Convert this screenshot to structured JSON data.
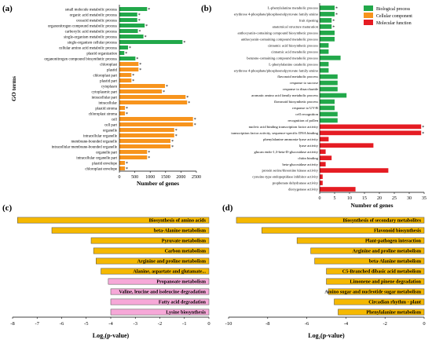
{
  "panels": {
    "a": "(a)",
    "b": "(b)",
    "c": "(c)",
    "d": "(d)"
  },
  "colors": {
    "biological": "#22a84a",
    "cellular": "#f7941d",
    "molecular": "#e51c23",
    "pathway_yellow": "#f5b800",
    "pathway_pink": "#f6a8d8"
  },
  "chart_data": [
    {
      "panel": "a",
      "type": "bar",
      "orientation": "horizontal",
      "xlabel": "Number of genes",
      "ylabel": "GO terms",
      "xlim": [
        0,
        2500
      ],
      "xticks": [
        0,
        500,
        1000,
        1500,
        2000,
        2500
      ],
      "categories": [
        "small molecule metabolic process",
        "organic acid metabolic process",
        "oxoacid metabolic process",
        "organonitrogen compound metabolic process",
        "carboxylic acid metabolic process",
        "single-organism metabolic process",
        "single-organism cellular process",
        "cellular amino acid metabolic process",
        "plastid organization",
        "organonitrogen compound biosynthetic process",
        "chloroplast",
        "plastid",
        "chloroplast part",
        "plastid part",
        "cytoplasm",
        "cytoplasmic part",
        "intracellular part",
        "intracellular",
        "plastid stroma",
        "chloroplast stroma",
        "cell",
        "cell part",
        "organelle",
        "intracellular organelle",
        "membrane-bounded organelle",
        "intracellular membrane-bounded organelle",
        "organelle part",
        "intracellular organelle part",
        "plastid envelope",
        "chloroplast envelope"
      ],
      "groups": [
        "biological",
        "biological",
        "biological",
        "biological",
        "biological",
        "biological",
        "biological",
        "biological",
        "biological",
        "biological",
        "cellular",
        "cellular",
        "cellular",
        "cellular",
        "cellular",
        "cellular",
        "cellular",
        "cellular",
        "cellular",
        "cellular",
        "cellular",
        "cellular",
        "cellular",
        "cellular",
        "cellular",
        "cellular",
        "cellular",
        "cellular",
        "cellular",
        "cellular"
      ],
      "values": [
        900,
        580,
        580,
        820,
        600,
        780,
        2050,
        280,
        160,
        520,
        620,
        620,
        390,
        390,
        1480,
        1380,
        2150,
        2200,
        180,
        180,
        2390,
        2390,
        1780,
        1780,
        1660,
        1660,
        900,
        900,
        180,
        180
      ],
      "marker": "*"
    },
    {
      "panel": "b",
      "type": "bar",
      "orientation": "horizontal",
      "xlabel": "Number of genes",
      "xlim": [
        0,
        35
      ],
      "xticks": [
        0,
        5,
        10,
        15,
        20,
        25,
        30,
        35
      ],
      "legend": {
        "placement": "top-right",
        "entries": [
          {
            "label": "Biological process",
            "key": "biological"
          },
          {
            "label": "Cellular component",
            "key": "cellular"
          },
          {
            "label": "Molecular function",
            "key": "molecular"
          }
        ]
      },
      "categories": [
        "L-phenylalanine metabolic process",
        "erythrose 4-phosphate/phosphoenolpyruvate family amino",
        "fruit ripening",
        "anatomical structure maturation",
        "anthocyanin-containing compound biosynthetic process",
        "anthocyanin-containing compound metabolic process",
        "cinnamic acid biosynthetic process",
        "cinnamic acid metabolic process",
        "benzene-containing compound metabolic process",
        "L-phenylalanine catabolic process",
        "erythrose 4-phosphate/phosphoenolpyruvate family amino",
        "flavonoid metabolic process",
        "response to sucrose",
        "response to disaccharide",
        "aromatic amino acid family metabolic process",
        "flavonoid biosynthetic process",
        "response to UV-B",
        "cell recognition",
        "recognition of pollen",
        "nucleic acid binding transcription factor activity",
        "transcription factor activity, sequence-specific DNA binding",
        "phenylalanine ammonia-lyase activity",
        "lyase activity",
        "glucan endo-1,3-beta-D-glucosidase activity",
        "chitin binding",
        "beta-glucosidase activity",
        "protein serine/threonine kinase activity",
        "cysteine-type endopeptidase inhibitor activity",
        "prephenate dehydratase activity",
        "dioxygenase activity"
      ],
      "groups": [
        "biological",
        "biological",
        "biological",
        "biological",
        "biological",
        "biological",
        "biological",
        "biological",
        "biological",
        "biological",
        "biological",
        "biological",
        "biological",
        "biological",
        "biological",
        "biological",
        "biological",
        "biological",
        "biological",
        "molecular",
        "molecular",
        "molecular",
        "molecular",
        "molecular",
        "molecular",
        "molecular",
        "molecular",
        "molecular",
        "molecular",
        "molecular"
      ],
      "values": [
        5,
        5,
        4,
        4,
        5,
        5,
        3,
        3,
        7,
        3,
        3,
        6,
        6,
        6,
        9,
        5,
        5,
        6,
        6,
        34,
        34,
        3,
        18,
        2,
        4,
        2,
        23,
        1,
        1,
        12
      ],
      "starred": [
        true,
        true,
        true,
        true,
        false,
        false,
        false,
        false,
        false,
        false,
        false,
        false,
        false,
        false,
        false,
        false,
        false,
        false,
        false,
        true,
        true,
        false,
        false,
        false,
        false,
        false,
        false,
        false,
        false,
        false
      ]
    },
    {
      "panel": "c",
      "type": "bar",
      "orientation": "horizontal",
      "xlabel": "Log₂(p-value)",
      "xlim": [
        -8,
        0
      ],
      "xticks": [
        -8,
        -7,
        -6,
        -5,
        -4,
        -3,
        -2,
        -1,
        0
      ],
      "categories": [
        "Biosynthesis of amino acids",
        "beta-Alanine metabolism",
        "Pyruvate metabolism",
        "Carbon metabolism",
        "Arginine and proline metabolism",
        "Alanine, aspartate and glutamate...",
        "Propanoate metabolism",
        "Valine, leucine and isoleucine degradation",
        "Fatty acid degradation",
        "Lysine biosynthesis"
      ],
      "values": [
        -7.8,
        -6.4,
        -4.8,
        -4.7,
        -4.6,
        -4.4,
        -4.1,
        -4.0,
        -4.0,
        -4.0
      ],
      "colors": [
        "pathway_yellow",
        "pathway_yellow",
        "pathway_yellow",
        "pathway_yellow",
        "pathway_yellow",
        "pathway_yellow",
        "pathway_pink",
        "pathway_pink",
        "pathway_pink",
        "pathway_pink"
      ]
    },
    {
      "panel": "d",
      "type": "bar",
      "orientation": "horizontal",
      "xlabel": "Log₂(p-value)",
      "xlim": [
        -10,
        0
      ],
      "xticks": [
        -10,
        -8,
        -6,
        -4,
        -2,
        0
      ],
      "categories": [
        "Biosynthesis of secondary metabolites",
        "Flavonoid biosynthesis",
        "Plant-pathogen interaction",
        "Arginine and proline metabolism",
        "beta-Alanine metabolism",
        "C5-Branched dibasic acid metabolism",
        "Limonene and pinene degradation",
        "Amino sugar and nucleotide sugar metabolism",
        "Circadian rhythm - plant",
        "Phenylalanine metabolism"
      ],
      "values": [
        -9.6,
        -8.3,
        -6.5,
        -5.8,
        -5.6,
        -5.0,
        -5.0,
        -4.9,
        -4.6,
        -4.4
      ],
      "colors": [
        "pathway_yellow",
        "pathway_yellow",
        "pathway_yellow",
        "pathway_yellow",
        "pathway_yellow",
        "pathway_yellow",
        "pathway_yellow",
        "pathway_yellow",
        "pathway_yellow",
        "pathway_yellow"
      ]
    }
  ]
}
